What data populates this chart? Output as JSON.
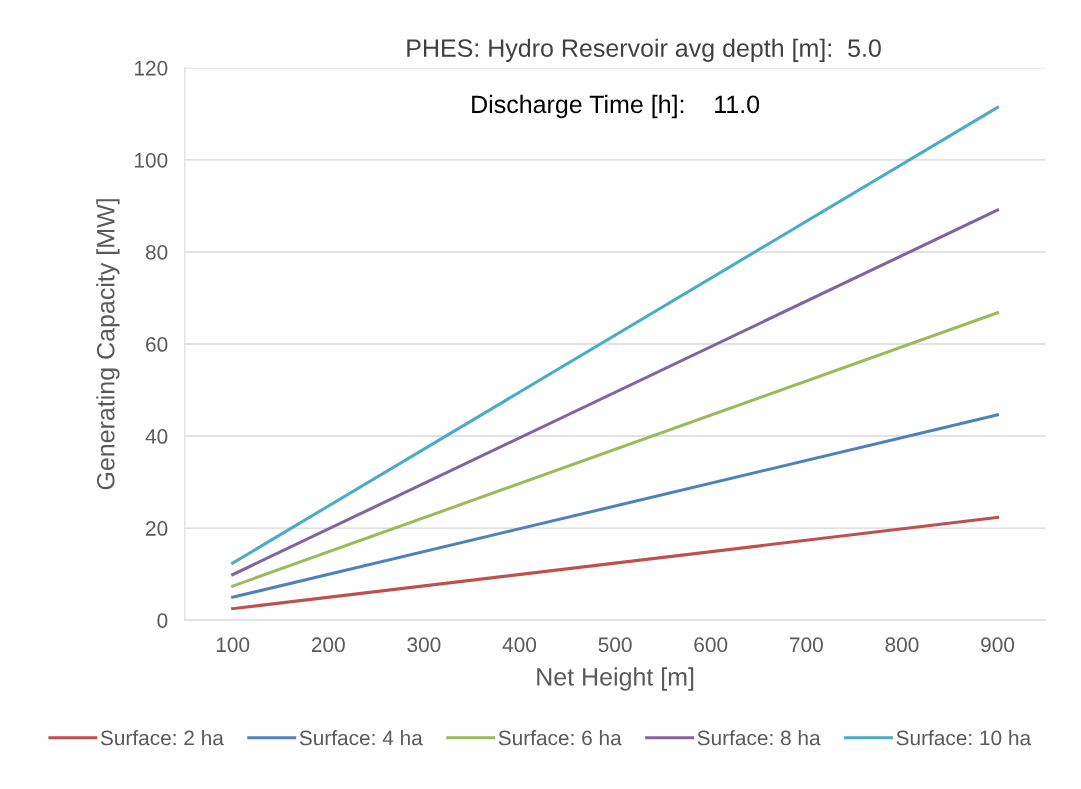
{
  "chart_data": {
    "type": "line",
    "title": "PHES: Hydro Reservoir avg depth [m]:  5.0",
    "xlabel": "Net Height [m]",
    "ylabel": "Generating Capacity [MW]",
    "annotations": [
      "Discharge Time [h]:    11.0"
    ],
    "x": [
      100,
      900
    ],
    "series": [
      {
        "name": "Surface: 2 ha",
        "color": "#c0504d",
        "values": [
          2.5,
          22.3
        ]
      },
      {
        "name": "Surface: 4 ha",
        "color": "#4f81bd",
        "values": [
          5.0,
          44.6
        ]
      },
      {
        "name": "Surface: 6 ha",
        "color": "#9bbb59",
        "values": [
          7.4,
          66.8
        ]
      },
      {
        "name": "Surface: 8 ha",
        "color": "#8064a2",
        "values": [
          9.9,
          89.1
        ]
      },
      {
        "name": "Surface: 10 ha",
        "color": "#4bacc6",
        "values": [
          12.4,
          111.4
        ]
      }
    ],
    "xlim": [
      50,
      950
    ],
    "xticks": [
      100,
      200,
      300,
      400,
      500,
      600,
      700,
      800,
      900
    ],
    "ylim": [
      0,
      120
    ],
    "yticks": [
      0,
      20,
      40,
      60,
      80,
      100,
      120
    ],
    "grid": "y",
    "legend": "bottom",
    "marker": "none",
    "line_style": "solid"
  }
}
